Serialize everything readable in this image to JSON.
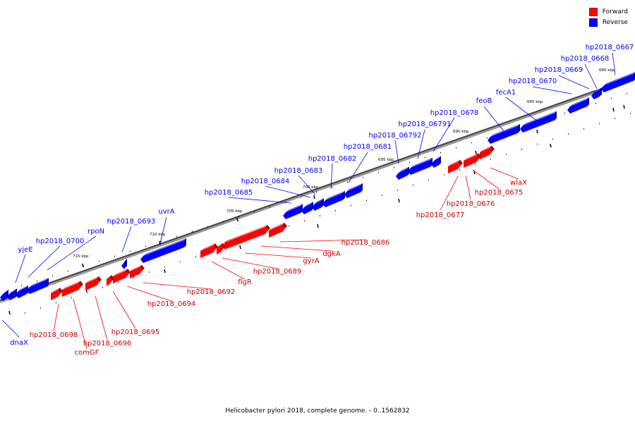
{
  "legend": {
    "forward": {
      "label": "Forward",
      "color": "#ff0000"
    },
    "reverse": {
      "label": "Reverse",
      "color": "#0000ff"
    }
  },
  "caption": "Helicobacter pylori 2018, complete genome. - 0..1562832",
  "ticks": [
    "715 kbp",
    "710 kbp",
    "705 kbp",
    "700 kbp",
    "695 kbp",
    "690 kbp",
    "685 kbp",
    "680 kbp"
  ],
  "genes": {
    "reverse": [
      "hp2018_0667",
      "hp2018_0668",
      "hp2018_0669",
      "hp2018_0670",
      "fecA1",
      "feoB",
      "hp2018_0678",
      "hp2018_06791",
      "hp2018_06792",
      "hp2018_0681",
      "hp2018_0682",
      "hp2018_0683",
      "hp2018_0684",
      "hp2018_0685",
      "uvrA",
      "hp2018_0693",
      "rpoN",
      "hp2018_0700",
      "yjeE",
      "dnaX"
    ],
    "forward": [
      "wlaX",
      "hp2018_0675",
      "hp2018_0676",
      "hp2018_0677",
      "hp2018_0686",
      "dgkA",
      "gyrA",
      "hp2018_0689",
      "flgR",
      "hp2018_0692",
      "hp2018_0694",
      "hp2018_0695",
      "hp2018_0696",
      "hp2018_0698",
      "comGF"
    ]
  }
}
